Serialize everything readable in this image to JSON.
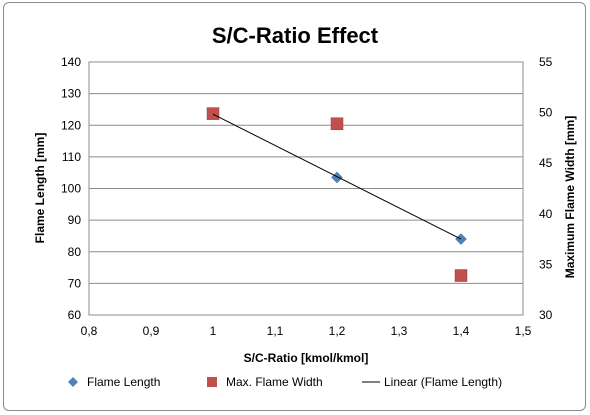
{
  "chart_data": {
    "type": "scatter",
    "title": "S/C-Ratio Effect",
    "xlabel": "S/C-Ratio [kmol/kmol]",
    "ylabel": "Flame Length [mm]",
    "y2label": "Maximum Flame Width [mm]",
    "xlim": [
      0.8,
      1.5
    ],
    "ylim": [
      60,
      140
    ],
    "y2lim": [
      30,
      55
    ],
    "x_ticks": [
      "0,8",
      "0,9",
      "1",
      "1,1",
      "1,2",
      "1,3",
      "1,4",
      "1,5"
    ],
    "y_ticks": [
      "60",
      "70",
      "80",
      "90",
      "100",
      "110",
      "120",
      "130",
      "140"
    ],
    "y2_ticks": [
      "30",
      "35",
      "40",
      "45",
      "50",
      "55"
    ],
    "grid": true,
    "legend_position": "bottom",
    "series": [
      {
        "name": "Flame Length",
        "axis": "left",
        "marker": "diamond",
        "color": "#4f81bd",
        "x": [
          1.0,
          1.2,
          1.4
        ],
        "y": [
          123.5,
          103.5,
          84
        ]
      },
      {
        "name": "Max. Flame Width",
        "axis": "right",
        "marker": "square",
        "color": "#c0504d",
        "x": [
          1.0,
          1.2,
          1.4
        ],
        "y": [
          49.9,
          48.9,
          33.9
        ]
      },
      {
        "name": "Linear (Flame Length)",
        "axis": "left",
        "marker": "line",
        "color": "#000000",
        "x": [
          1.0,
          1.4
        ],
        "y": [
          123.5,
          84
        ]
      }
    ]
  }
}
